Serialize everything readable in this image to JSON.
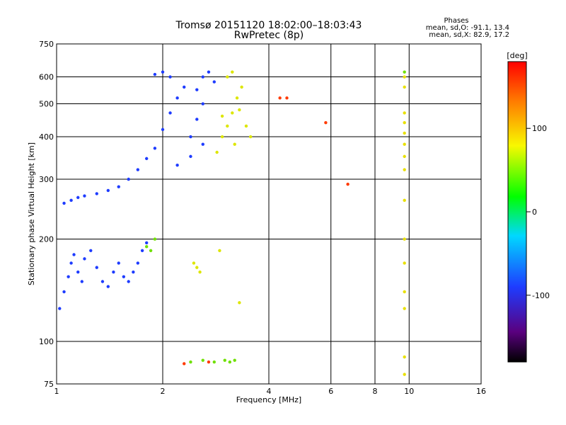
{
  "chart_data": {
    "type": "scatter",
    "title": "Tromsø 20151120 18:02:00–18:03:43",
    "subtitle": "RwPretec (8p)",
    "xlabel": "Frequency [MHz]",
    "ylabel": "Stationary phase Virtual Height [km]",
    "x_scale": "log",
    "y_scale": "log",
    "xlim": [
      1,
      16
    ],
    "ylim": [
      75,
      750
    ],
    "x_ticks": [
      1,
      2,
      4,
      6,
      8,
      10,
      16
    ],
    "y_ticks": [
      75,
      100,
      200,
      300,
      400,
      500,
      600,
      750
    ],
    "grid": true,
    "phases_header": "Phases",
    "phases_line1": "mean, sd,O: -91.1, 13.4",
    "phases_line2": "mean, sd,X:  82.9, 17.2",
    "colorbar": {
      "label": "[deg]",
      "range": [
        -180,
        180
      ],
      "ticks": [
        100,
        0,
        -100
      ]
    },
    "series": [
      {
        "color": "#1e3cff",
        "points": [
          [
            1.02,
            125
          ],
          [
            1.05,
            140
          ],
          [
            1.08,
            155
          ],
          [
            1.1,
            170
          ],
          [
            1.12,
            180
          ],
          [
            1.15,
            160
          ],
          [
            1.18,
            150
          ],
          [
            1.2,
            175
          ],
          [
            1.25,
            185
          ],
          [
            1.3,
            165
          ],
          [
            1.35,
            150
          ],
          [
            1.4,
            145
          ],
          [
            1.45,
            160
          ],
          [
            1.5,
            170
          ],
          [
            1.55,
            155
          ],
          [
            1.6,
            150
          ],
          [
            1.65,
            160
          ],
          [
            1.7,
            170
          ],
          [
            1.75,
            185
          ],
          [
            1.8,
            195
          ],
          [
            1.05,
            255
          ],
          [
            1.1,
            260
          ],
          [
            1.15,
            265
          ],
          [
            1.2,
            268
          ],
          [
            1.3,
            272
          ],
          [
            1.4,
            278
          ],
          [
            1.5,
            285
          ],
          [
            1.6,
            300
          ],
          [
            1.7,
            320
          ],
          [
            1.8,
            345
          ],
          [
            1.9,
            370
          ],
          [
            2.0,
            420
          ],
          [
            2.1,
            470
          ],
          [
            2.2,
            520
          ],
          [
            2.3,
            560
          ],
          [
            2.1,
            600
          ],
          [
            2.0,
            620
          ],
          [
            1.9,
            610
          ],
          [
            2.4,
            400
          ],
          [
            2.5,
            450
          ],
          [
            2.6,
            500
          ],
          [
            2.5,
            550
          ],
          [
            2.6,
            600
          ],
          [
            2.7,
            620
          ],
          [
            2.8,
            580
          ],
          [
            2.4,
            350
          ],
          [
            2.6,
            380
          ],
          [
            2.2,
            330
          ]
        ]
      },
      {
        "color": "#dde600",
        "points": [
          [
            2.85,
            360
          ],
          [
            2.95,
            400
          ],
          [
            3.05,
            430
          ],
          [
            3.15,
            470
          ],
          [
            3.25,
            520
          ],
          [
            3.35,
            560
          ],
          [
            3.05,
            600
          ],
          [
            3.15,
            620
          ],
          [
            3.3,
            480
          ],
          [
            3.45,
            430
          ],
          [
            3.55,
            400
          ],
          [
            2.95,
            460
          ],
          [
            3.2,
            380
          ],
          [
            2.45,
            170
          ],
          [
            2.5,
            165
          ],
          [
            2.55,
            160
          ],
          [
            2.9,
            185
          ],
          [
            3.3,
            130
          ]
        ]
      },
      {
        "color": "#6fe000",
        "points": [
          [
            1.8,
            190
          ],
          [
            1.85,
            185
          ],
          [
            1.9,
            200
          ],
          [
            2.4,
            87
          ],
          [
            2.6,
            88
          ],
          [
            2.8,
            87
          ],
          [
            3.0,
            88
          ],
          [
            3.1,
            87
          ],
          [
            3.2,
            88
          ],
          [
            9.7,
            620
          ]
        ]
      },
      {
        "color": "#e8e000",
        "points": [
          [
            9.7,
            600
          ],
          [
            9.7,
            560
          ],
          [
            9.7,
            470
          ],
          [
            9.7,
            440
          ],
          [
            9.7,
            410
          ],
          [
            9.7,
            380
          ],
          [
            9.7,
            350
          ],
          [
            9.7,
            320
          ],
          [
            9.7,
            260
          ],
          [
            9.7,
            200
          ],
          [
            9.7,
            170
          ],
          [
            9.7,
            140
          ],
          [
            9.7,
            125
          ],
          [
            9.7,
            90
          ],
          [
            9.7,
            80
          ]
        ]
      },
      {
        "color": "#ff3a00",
        "points": [
          [
            4.3,
            520
          ],
          [
            4.5,
            520
          ],
          [
            5.8,
            440
          ],
          [
            2.7,
            87
          ],
          [
            2.3,
            86
          ],
          [
            6.7,
            290
          ]
        ]
      }
    ]
  }
}
